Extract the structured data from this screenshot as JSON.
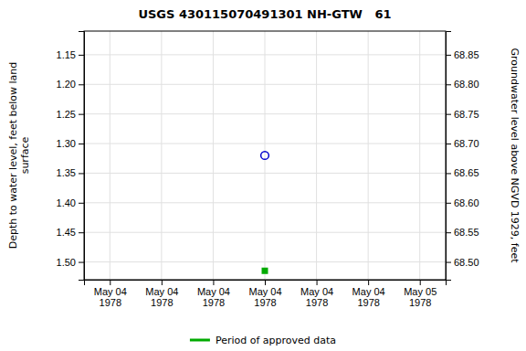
{
  "chart_data": {
    "type": "scatter",
    "title": "USGS 430115070491301 NH-GTW   61",
    "ylabel": "Depth to water level, feet below land\nsurface",
    "y2label": "Groundwater level above NGVD 1929, feet",
    "categories": [
      "May 04\n1978",
      "May 04\n1978",
      "May 04\n1978",
      "May 04\n1978",
      "May 04\n1978",
      "May 04\n1978",
      "May 05\n1978"
    ],
    "series": [
      {
        "color": "#0000cc",
        "marker": "circle",
        "values": [
          null,
          null,
          null,
          1.32,
          null,
          null,
          null
        ]
      },
      {
        "name": "Period of approved data",
        "color": "#00aa00",
        "marker": "square",
        "values": [
          null,
          null,
          null,
          1.515,
          null,
          null,
          null
        ]
      }
    ],
    "ylim": [
      1.53,
      1.11
    ],
    "yticks": [
      1.15,
      {
        "value": 1.2,
        "label": "1.20"
      },
      1.25,
      {
        "value": 1.3,
        "label": "1.30"
      },
      1.35,
      {
        "value": 1.4,
        "label": "1.40"
      },
      1.45,
      {
        "value": 1.5,
        "label": "1.50"
      }
    ],
    "y2lim": [
      68.47,
      68.89
    ],
    "y2ticks": [
      68.85,
      {
        "value": 68.8,
        "label": "68.80"
      },
      68.75,
      {
        "value": 68.7,
        "label": "68.70"
      },
      68.65,
      {
        "value": 68.6,
        "label": "68.60"
      },
      68.55,
      {
        "value": 68.5,
        "label": "68.50"
      }
    ],
    "grid": true,
    "legend": "bottom"
  }
}
